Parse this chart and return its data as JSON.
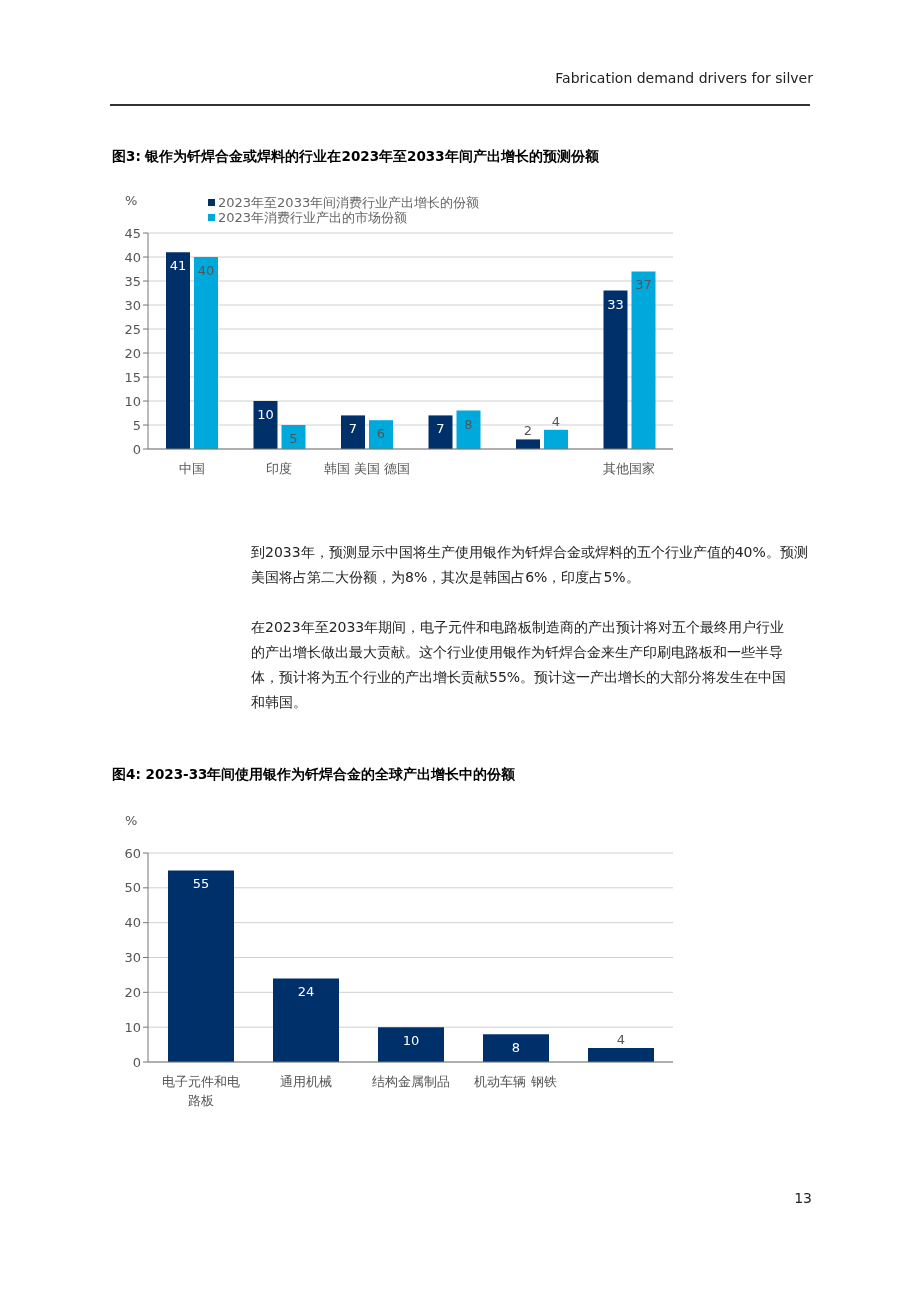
{
  "chart_data": [
    {
      "type": "bar",
      "title": "图3: 银作为钎焊合金或焊料的行业在2023年至2033年间产出增长的预测份额",
      "ylabel": "%",
      "categories": [
        "中国",
        "印度",
        "韩国 美国 德国",
        null,
        null,
        "其他国家"
      ],
      "series": [
        {
          "name": "2023年至2033年间消费行业产出增长的份额",
          "color": "#00306a",
          "values": [
            41,
            10,
            7,
            7,
            2,
            33
          ]
        },
        {
          "name": "2023年消费行业产出的市场份额",
          "color": "#00a9dc",
          "values": [
            40,
            5,
            6,
            8,
            4,
            37
          ]
        }
      ],
      "ylim": [
        0,
        45
      ],
      "yticks": [
        0,
        5,
        10,
        15,
        20,
        25,
        30,
        35,
        40,
        45
      ],
      "grid": "y",
      "legend": "top left",
      "data_labels": true,
      "annotations": [
        "Fabrication demand drivers for silver",
        "到2033年，预测显示中国将生产使用银作为钎焊合金或焊料的五个行业产值的40%。预测美国将占第二大份额，为8%，其次是韩国占6%，印度占5%。",
        "在2023年至2033年期间，电子元件和电路板制造商的产出预计将对五个最终用户行业的产出增长做出最大贡献。这个行业使用银作为钎焊合金来生产印刷电路板和一些半导体，预计将为五个行业的产出增长贡献55%。预计这一产出增长的大部分将发生在中国和韩国。"
      ]
    },
    {
      "type": "bar",
      "title": "图4: 2023-33年间使用银作为钎焊合金的全球产出增长中的份额",
      "ylabel": "%",
      "categories": [
        "电子元件和电路板",
        "通用机械",
        "结构金属制品",
        "机动车辆 钢铁",
        null
      ],
      "series": [
        {
          "color": "#00306a",
          "values": [
            55,
            24,
            10,
            8,
            4
          ]
        }
      ],
      "ylim": [
        0,
        60
      ],
      "yticks": [
        0,
        10,
        20,
        30,
        40,
        50,
        60
      ],
      "grid": "y",
      "data_labels": true,
      "annotations": [
        "13"
      ]
    }
  ]
}
